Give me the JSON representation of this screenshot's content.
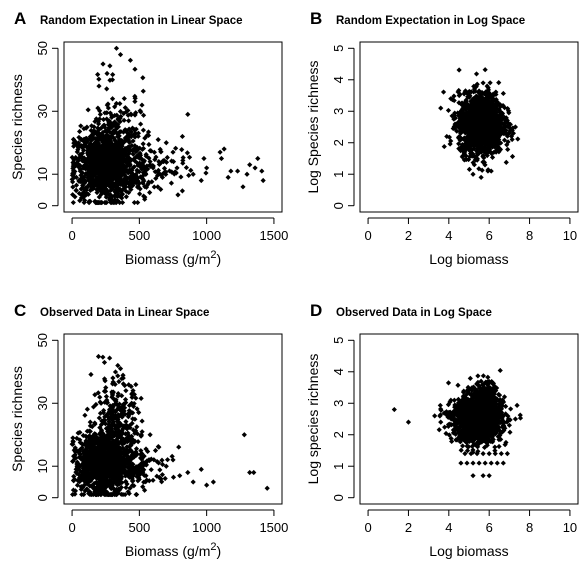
{
  "chart_data": [
    {
      "panel": "A",
      "type": "scatter",
      "title": "Random Expectation in Linear Space",
      "xlabel": "Biomass (g/m",
      "xlabel_sup": "2",
      "xlabel_close": ")",
      "ylabel": "Species richness",
      "xlim": [
        0,
        1500
      ],
      "ylim": [
        0,
        50
      ],
      "xticks": [
        0,
        500,
        1000,
        1500
      ],
      "yticks": [
        0,
        10,
        30,
        50
      ],
      "cloud": [
        {
          "cx": 240,
          "cy": 13,
          "sx": 110,
          "sy": 5.5,
          "n": 1100
        },
        {
          "cx": 330,
          "cy": 20,
          "sx": 120,
          "sy": 9,
          "n": 220
        },
        {
          "cx": 520,
          "cy": 12,
          "sx": 160,
          "sy": 4,
          "n": 170
        }
      ],
      "points": [
        [
          230,
          45
        ],
        [
          260,
          42
        ],
        [
          330,
          50
        ],
        [
          360,
          48
        ],
        [
          200,
          38
        ],
        [
          300,
          40
        ],
        [
          640,
          21
        ],
        [
          700,
          20
        ],
        [
          750,
          17
        ],
        [
          820,
          22
        ],
        [
          860,
          29
        ],
        [
          900,
          10
        ],
        [
          1000,
          12
        ],
        [
          1100,
          17
        ],
        [
          1110,
          15
        ],
        [
          1130,
          18
        ],
        [
          1160,
          9
        ],
        [
          1180,
          11
        ],
        [
          1270,
          6
        ],
        [
          1300,
          10
        ],
        [
          1320,
          13
        ],
        [
          1360,
          12
        ],
        [
          1380,
          15
        ],
        [
          1410,
          11
        ],
        [
          1420,
          8
        ],
        [
          1230,
          11
        ],
        [
          960,
          8
        ],
        [
          980,
          15
        ],
        [
          780,
          12
        ],
        [
          680,
          14
        ]
      ]
    },
    {
      "panel": "B",
      "type": "scatter",
      "title": "Random Expectation in Log Space",
      "xlabel": "Log biomass",
      "ylabel": "Log Species richness",
      "xlim": [
        0,
        10
      ],
      "ylim": [
        0,
        5
      ],
      "xticks": [
        0,
        2,
        4,
        6,
        8,
        10
      ],
      "yticks": [
        0,
        1,
        2,
        3,
        4,
        5
      ],
      "cloud": [
        {
          "cx": 5.6,
          "cy": 2.6,
          "sx": 0.55,
          "sy": 0.48,
          "n": 1500
        }
      ],
      "points": [
        [
          3.6,
          3.1
        ],
        [
          3.9,
          2.2
        ],
        [
          4.1,
          3.4
        ],
        [
          7.2,
          2.3
        ],
        [
          7.3,
          2.5
        ],
        [
          5.7,
          3.9
        ],
        [
          5.9,
          3.8
        ],
        [
          5.2,
          1.0
        ],
        [
          5.6,
          0.9
        ],
        [
          6.1,
          1.1
        ]
      ]
    },
    {
      "panel": "C",
      "type": "scatter",
      "title": "Observed Data in Linear Space",
      "xlabel": "Biomass (g/m",
      "xlabel_sup": "2",
      "xlabel_close": ")",
      "ylabel": "Species richness",
      "xlim": [
        0,
        1500
      ],
      "ylim": [
        0,
        50
      ],
      "xticks": [
        0,
        500,
        1000,
        1500
      ],
      "yticks": [
        0,
        10,
        30,
        50
      ],
      "cloud": [
        {
          "cx": 220,
          "cy": 11,
          "sx": 100,
          "sy": 5,
          "n": 1100
        },
        {
          "cx": 330,
          "cy": 22,
          "sx": 90,
          "sy": 8,
          "n": 320
        },
        {
          "cx": 470,
          "cy": 10,
          "sx": 130,
          "sy": 3.5,
          "n": 150
        }
      ],
      "points": [
        [
          340,
          42
        ],
        [
          360,
          41
        ],
        [
          380,
          38
        ],
        [
          320,
          36
        ],
        [
          400,
          34
        ],
        [
          300,
          33
        ],
        [
          700,
          10
        ],
        [
          750,
          12
        ],
        [
          800,
          7
        ],
        [
          860,
          8
        ],
        [
          900,
          5
        ],
        [
          1000,
          4
        ],
        [
          1050,
          5
        ],
        [
          960,
          9
        ],
        [
          1280,
          20
        ],
        [
          1320,
          8
        ],
        [
          1350,
          8
        ],
        [
          1450,
          3
        ],
        [
          1520,
          3
        ],
        [
          620,
          15
        ],
        [
          660,
          6
        ],
        [
          580,
          20
        ]
      ]
    },
    {
      "panel": "D",
      "type": "scatter",
      "title": "Observed Data in Log Space",
      "xlabel": "Log biomass",
      "ylabel": "Log species richness",
      "xlim": [
        0,
        10
      ],
      "ylim": [
        0,
        5
      ],
      "xticks": [
        0,
        2,
        4,
        6,
        8,
        10
      ],
      "yticks": [
        0,
        1,
        2,
        3,
        4,
        5
      ],
      "cloud": [
        {
          "cx": 5.4,
          "cy": 2.5,
          "sx": 0.6,
          "sy": 0.36,
          "n": 1400
        },
        {
          "cx": 5.8,
          "cy": 3.1,
          "sx": 0.35,
          "sy": 0.3,
          "n": 220
        }
      ],
      "points": [
        [
          1.3,
          2.8
        ],
        [
          2.0,
          2.4
        ],
        [
          3.3,
          2.6
        ],
        [
          3.6,
          2.4
        ],
        [
          7.0,
          2.3
        ],
        [
          7.3,
          2.5
        ],
        [
          5.6,
          3.7
        ],
        [
          5.9,
          3.6
        ],
        [
          5.2,
          0.7
        ],
        [
          5.7,
          0.7
        ],
        [
          6.0,
          0.7
        ],
        [
          4.6,
          1.1
        ],
        [
          4.9,
          1.1
        ],
        [
          5.2,
          1.1
        ],
        [
          5.5,
          1.1
        ],
        [
          5.8,
          1.1
        ],
        [
          6.1,
          1.1
        ],
        [
          6.4,
          1.1
        ],
        [
          6.7,
          1.1
        ],
        [
          4.8,
          1.4
        ],
        [
          5.1,
          1.4
        ],
        [
          5.4,
          1.4
        ],
        [
          5.7,
          1.4
        ],
        [
          6.0,
          1.4
        ],
        [
          6.3,
          1.4
        ],
        [
          6.6,
          1.4
        ],
        [
          6.9,
          1.4
        ]
      ]
    }
  ]
}
